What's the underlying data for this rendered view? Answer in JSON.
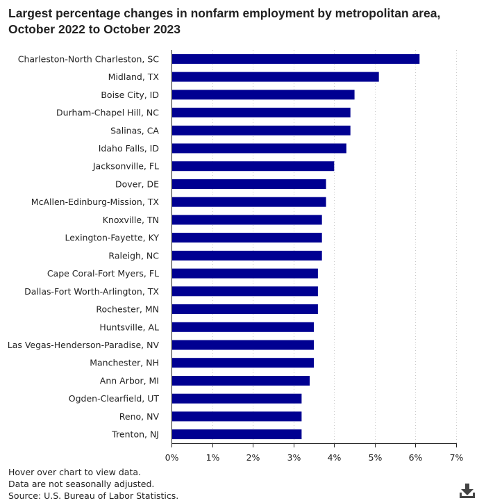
{
  "title_line1": "Largest percentage changes in nonfarm employment by metropolitan area,",
  "title_line2": "October 2022 to October 2023",
  "footnotes": {
    "hover": "Hover over chart to view data.",
    "seasonal": "Data are not seasonally adjusted.",
    "source": "Source: U.S. Bureau of Labor Statistics."
  },
  "download_icon": "download-icon",
  "colors": {
    "bar": "#000091",
    "grid": "#c8c8c8",
    "axis": "#222222"
  },
  "chart_data": {
    "type": "bar",
    "orientation": "horizontal",
    "title": "Largest percentage changes in nonfarm employment by metropolitan area, October 2022 to October 2023",
    "xlabel": "",
    "ylabel": "",
    "xlim": [
      0,
      7
    ],
    "xticks": [
      "0%",
      "1%",
      "2%",
      "3%",
      "4%",
      "5%",
      "6%",
      "7%"
    ],
    "grid": "vertical-dotted",
    "categories": [
      "Charleston-North Charleston, SC",
      "Midland, TX",
      "Boise City, ID",
      "Durham-Chapel Hill, NC",
      "Salinas, CA",
      "Idaho Falls, ID",
      "Jacksonville, FL",
      "Dover, DE",
      "McAllen-Edinburg-Mission, TX",
      "Knoxville, TN",
      "Lexington-Fayette, KY",
      "Raleigh, NC",
      "Cape Coral-Fort Myers, FL",
      "Dallas-Fort Worth-Arlington, TX",
      "Rochester, MN",
      "Huntsville, AL",
      "Las Vegas-Henderson-Paradise, NV",
      "Manchester, NH",
      "Ann Arbor, MI",
      "Ogden-Clearfield, UT",
      "Reno, NV",
      "Trenton, NJ"
    ],
    "values": [
      6.1,
      5.1,
      4.5,
      4.4,
      4.4,
      4.3,
      4.0,
      3.8,
      3.8,
      3.7,
      3.7,
      3.7,
      3.6,
      3.6,
      3.6,
      3.5,
      3.5,
      3.5,
      3.4,
      3.2,
      3.2,
      3.2
    ]
  }
}
